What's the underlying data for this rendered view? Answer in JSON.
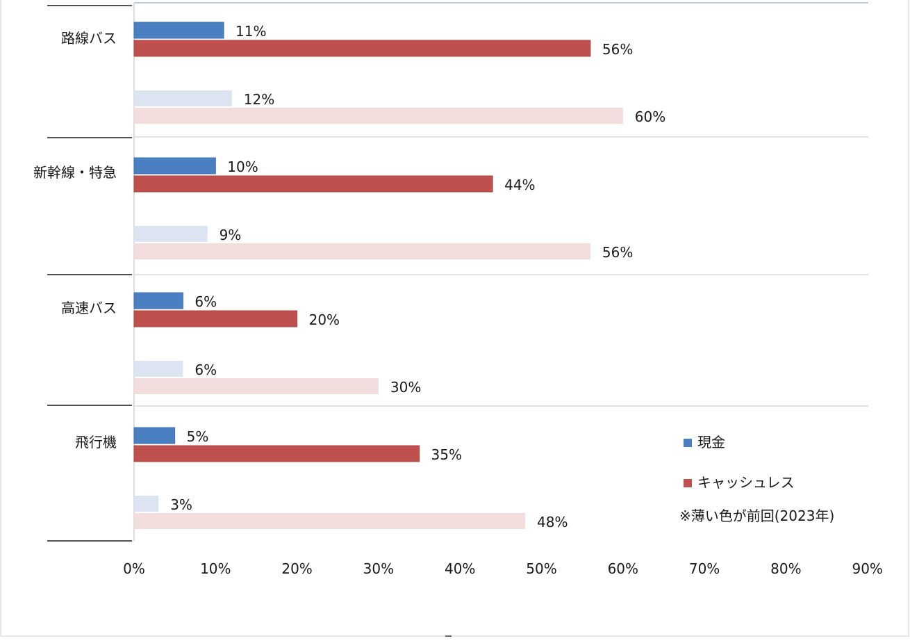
{
  "chart_data": {
    "type": "bar",
    "orientation": "horizontal",
    "categories": [
      "路線バス",
      "新幹線・特急",
      "高速バス",
      "飛行機"
    ],
    "series": [
      {
        "key": "cash_now",
        "name": "現金",
        "values": [
          11,
          10,
          6,
          5
        ],
        "color": "#4a7fc1"
      },
      {
        "key": "cashless_now",
        "name": "キャッシュレス",
        "values": [
          56,
          44,
          20,
          35
        ],
        "color": "#c0504d"
      },
      {
        "key": "cash_prev",
        "values": [
          12,
          9,
          6,
          3
        ],
        "color": "#dce4f2"
      },
      {
        "key": "cashless_prev",
        "values": [
          60,
          56,
          30,
          48
        ],
        "color": "#f2dcdc"
      }
    ],
    "value_labels": {
      "cash_now": [
        "11%",
        "10%",
        "6%",
        "5%"
      ],
      "cashless_now": [
        "56%",
        "44%",
        "20%",
        "35%"
      ],
      "cash_prev": [
        "12%",
        "9%",
        "6%",
        "3%"
      ],
      "cashless_prev": [
        "60%",
        "56%",
        "30%",
        "48%"
      ]
    },
    "xlim": [
      0,
      90
    ],
    "xticks": [
      "0%",
      "10%",
      "20%",
      "30%",
      "40%",
      "50%",
      "60%",
      "70%",
      "80%",
      "90%"
    ],
    "grid": "horizontal separators between categories",
    "legend": {
      "placement": "bottom-right",
      "items": [
        "現金",
        "キャッシュレス"
      ]
    },
    "note": "※薄い色が前回(2023年)"
  }
}
